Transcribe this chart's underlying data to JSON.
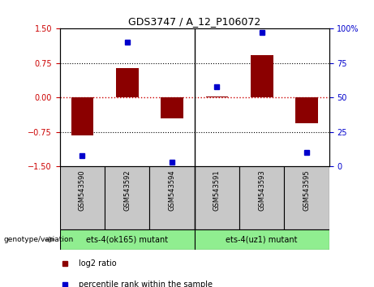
{
  "title": "GDS3747 / A_12_P106072",
  "samples": [
    "GSM543590",
    "GSM543592",
    "GSM543594",
    "GSM543591",
    "GSM543593",
    "GSM543595"
  ],
  "log2_ratio": [
    -0.82,
    0.65,
    -0.45,
    0.02,
    0.92,
    -0.55
  ],
  "percentile_rank": [
    8,
    90,
    3,
    58,
    97,
    10
  ],
  "groups": [
    {
      "label": "ets-4(ok165) mutant",
      "indices": [
        0,
        1,
        2
      ],
      "color": "#90ee90"
    },
    {
      "label": "ets-4(uz1) mutant",
      "indices": [
        3,
        4,
        5
      ],
      "color": "#90ee90"
    }
  ],
  "bar_color": "#8B0000",
  "dot_color": "#0000cc",
  "bar_width": 0.5,
  "ylim_left": [
    -1.5,
    1.5
  ],
  "ylim_right": [
    0,
    100
  ],
  "yticks_left": [
    -1.5,
    -0.75,
    0,
    0.75,
    1.5
  ],
  "yticks_right": [
    0,
    25,
    50,
    75,
    100
  ],
  "hline_zero_color": "#cc0000",
  "hline_other_color": "#000000",
  "tick_label_color_left": "#cc0000",
  "tick_label_color_right": "#0000cc",
  "sample_box_color": "#c8c8c8",
  "genotype_label": "genotype/variation",
  "legend_log2": "log2 ratio",
  "legend_percentile": "percentile rank within the sample",
  "title_fontsize": 9,
  "axis_fontsize": 7,
  "label_fontsize": 7
}
